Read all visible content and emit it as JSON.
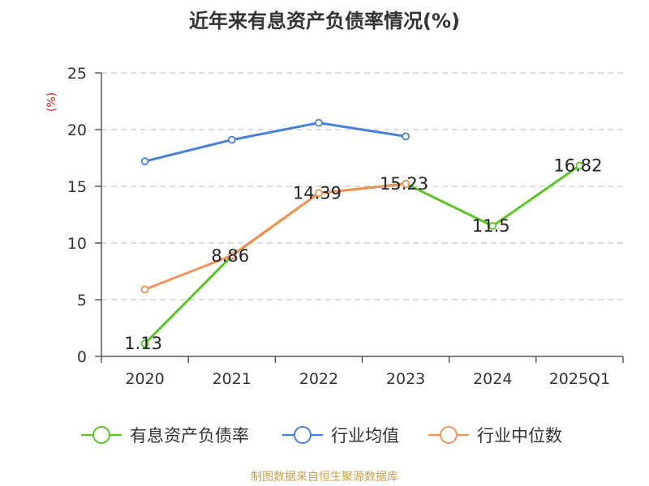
{
  "chart_data": {
    "type": "line",
    "title": "近年来有息资产负债率情况(%)",
    "ylabel": "(%)",
    "xlabel": "",
    "categories": [
      "2020",
      "2021",
      "2022",
      "2023",
      "2024",
      "2025Q1"
    ],
    "ylim": [
      0,
      25
    ],
    "yticks": [
      0,
      5,
      10,
      15,
      20,
      25
    ],
    "grid": true,
    "legend_position": "bottom",
    "series": [
      {
        "name": "有息资产负债率",
        "color": "#5cc22a",
        "values": [
          1.13,
          8.86,
          14.39,
          15.23,
          11.5,
          16.82
        ],
        "labels": [
          "1.13",
          "8.86",
          "14.39",
          "15.23",
          "11.5",
          "16.82"
        ]
      },
      {
        "name": "行业均值",
        "color": "#4a7fd8",
        "values": [
          17.2,
          19.1,
          20.6,
          19.4,
          null,
          null
        ]
      },
      {
        "name": "行业中位数",
        "color": "#f0925a",
        "values": [
          5.9,
          8.9,
          14.4,
          15.2,
          null,
          null
        ]
      }
    ]
  },
  "source": {
    "text": "制图数据来自恒生聚源数据库",
    "color": "#c8a050"
  }
}
